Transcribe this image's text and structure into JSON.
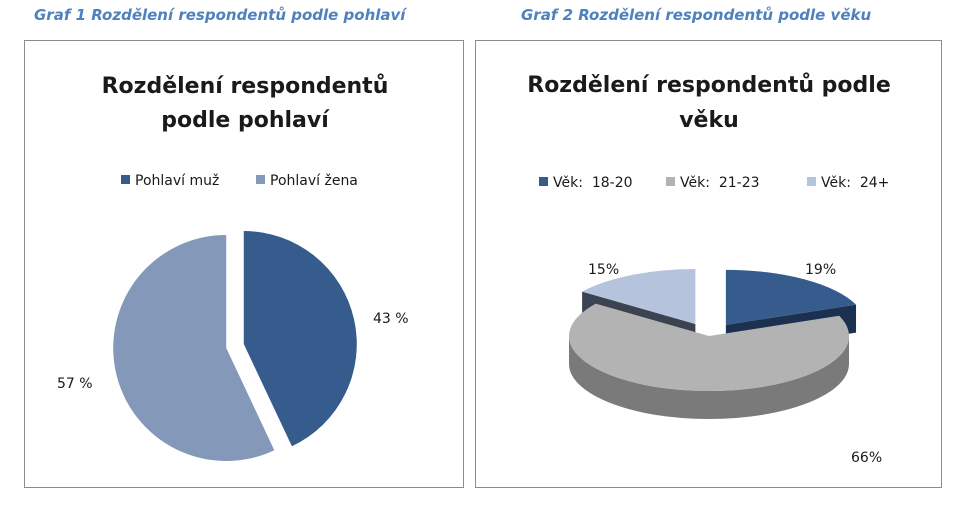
{
  "captions": {
    "chart1": "Graf 1 Rozdělení respondentů podle pohlaví",
    "chart2": "Graf 2 Rozdělení respondentů podle věku"
  },
  "chart_data": [
    {
      "type": "pie",
      "title_lines": [
        "Rozdělení respondentů",
        "podle pohlaví"
      ],
      "legend_position": "top",
      "categories": [
        "Pohlaví muž",
        "Pohlaví žena"
      ],
      "values": [
        43,
        57
      ],
      "labels": [
        "43 %",
        "57 %"
      ],
      "colors": [
        "#355c8c",
        "#8499b9"
      ],
      "exploded": true
    },
    {
      "type": "pie",
      "style": "3d",
      "title_lines": [
        "Rozdělení respondentů podle",
        "věku"
      ],
      "legend_position": "top",
      "categories": [
        "Věk:  18-20",
        "Věk:  21-23",
        "Věk:  24+"
      ],
      "values": [
        19,
        66,
        15
      ],
      "labels": [
        "19%",
        "66%",
        "15%"
      ],
      "colors": [
        "#355c8c",
        "#b3b3b3",
        "#b5c3dc"
      ],
      "side_colors": [
        "#1c3050",
        "#7a7a7a",
        "#3b4250"
      ],
      "exploded_slices": [
        "Věk:  18-20",
        "Věk:  24+"
      ]
    }
  ]
}
